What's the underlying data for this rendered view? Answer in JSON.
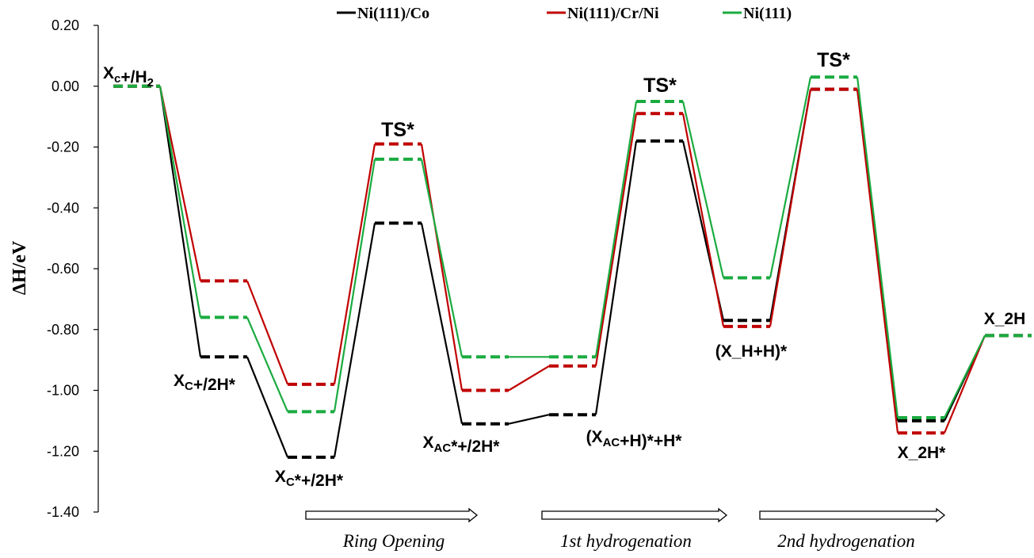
{
  "chart_data": {
    "type": "line",
    "ylabel": "ΔH/eV",
    "ylim": [
      -1.4,
      0.2
    ],
    "yticks": [
      "0.20",
      "0.00",
      "-0.20",
      "-0.40",
      "-0.60",
      "-0.80",
      "-1.00",
      "-1.20",
      "-1.40"
    ],
    "grid": false,
    "legend_position": "top",
    "states": [
      "Xc+/H2",
      "Xc+/2H*",
      "Xc*+/2H*",
      "TS*",
      "XAC*+/2H*",
      "(XAC+H)*+H*",
      "TS*",
      "(X_H+H)*",
      "TS*",
      "X_2H*",
      "X_2H"
    ],
    "series": [
      {
        "name": "Ni(111)/Co",
        "color": "#000000",
        "values": [
          0.0,
          -0.89,
          -1.22,
          -0.45,
          -1.11,
          -1.08,
          -0.18,
          -0.77,
          -0.01,
          -1.1,
          -0.82
        ]
      },
      {
        "name": "Ni(111)/Cr/Ni",
        "color": "#c00000",
        "values": [
          0.0,
          -0.64,
          -0.98,
          -0.19,
          -1.0,
          -0.92,
          -0.09,
          -0.79,
          -0.01,
          -1.14,
          -0.82
        ]
      },
      {
        "name": "Ni(111)",
        "color": "#1aab40",
        "values": [
          0.0,
          -0.76,
          -1.07,
          -0.24,
          -0.89,
          -0.89,
          -0.05,
          -0.63,
          0.03,
          -1.09,
          -0.82
        ]
      }
    ],
    "state_labels": [
      {
        "main": "X",
        "sub": "c",
        "rest": "+/H",
        "sub2": "2",
        "rest2": ""
      },
      {
        "main": "X",
        "sub": "C",
        "rest": "+/2H*",
        "sub2": "",
        "rest2": ""
      },
      {
        "main": "X",
        "sub": "C",
        "rest": "*+/2H*",
        "sub2": "",
        "rest2": ""
      },
      {
        "main": "TS*",
        "sub": "",
        "rest": "",
        "sub2": "",
        "rest2": ""
      },
      {
        "main": "X",
        "sub": "AC",
        "rest": "*+/2H*",
        "sub2": "",
        "rest2": ""
      },
      {
        "main": "(X",
        "sub": "AC",
        "rest": "+H)*+H*",
        "sub2": "",
        "rest2": ""
      },
      {
        "main": "TS*",
        "sub": "",
        "rest": "",
        "sub2": "",
        "rest2": ""
      },
      {
        "main": "(X_H+H)*",
        "sub": "",
        "rest": "",
        "sub2": "",
        "rest2": ""
      },
      {
        "main": "TS*",
        "sub": "",
        "rest": "",
        "sub2": "",
        "rest2": ""
      },
      {
        "main": "X_2H*",
        "sub": "",
        "rest": "",
        "sub2": "",
        "rest2": ""
      },
      {
        "main": "X_2H",
        "sub": "",
        "rest": "",
        "sub2": "",
        "rest2": ""
      }
    ],
    "phases": [
      "Ring Opening",
      "1st hydrogenation",
      "2nd hydrogenation"
    ]
  }
}
